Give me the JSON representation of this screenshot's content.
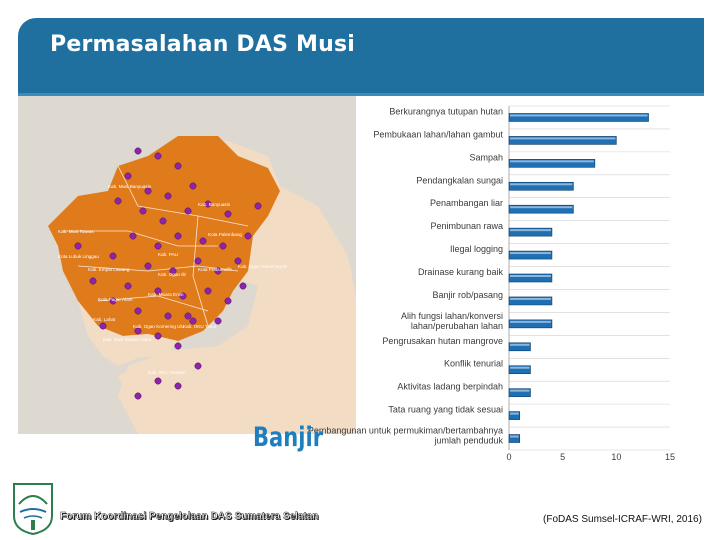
{
  "slide": {
    "title": "Permasalahan DAS Musi",
    "caption": "Banjir",
    "footer": "Forum Koordinasi Pengelolaan DAS Sumatera Selatan",
    "source": "(FoDAS Sumsel-ICRAF-WRI, 2016)",
    "colors": {
      "banner": "#1f6f9f",
      "bar_fill": "#1f6fb5",
      "bar_highlight": "#e6eef7",
      "map_primary": "#e07b1c",
      "map_secondary": "#f2dcc4",
      "markers": "#8e24aa",
      "caption": "#1e7ec0"
    }
  },
  "map": {
    "legend_labels": [
      "Kab. Musi Banyuasin",
      "Kab. Banyuasin",
      "Kab. Musi Rawas",
      "Kota Lubuk Linggau",
      "Kab. Empat Lawang",
      "Kota Pagar Alam",
      "Kab. Lahat",
      "Kab. Muara Enim",
      "Kota Prabumulih",
      "Kab. Ogan Komering Ilir",
      "Kab. Ogan Ilir",
      "Kota Palembang",
      "Kab. Ogan Komering Ulu",
      "Kab. OKU Timur",
      "Kab. OKU Selatan",
      "Kab. Musi Rawas Utara",
      "Kab. PALI"
    ]
  },
  "chart_data": {
    "type": "bar",
    "orientation": "horizontal",
    "categories": [
      "Berkurangnya tutupan hutan",
      "Pembukaan lahan/lahan gambut",
      "Sampah",
      "Pendangkalan sungai",
      "Penambangan liar",
      "Penimbunan rawa",
      "Ilegal logging",
      "Drainase kurang baik",
      "Banjir rob/pasang",
      "Alih fungsi lahan/konversi lahan/perubahan lahan",
      "Pengrusakan hutan mangrove",
      "Konflik tenurial",
      "Aktivitas ladang berpindah",
      "Tata ruang yang tidak sesuai",
      "Pembangunan untuk permukiman/bertambahnya jumlah penduduk"
    ],
    "values": [
      13,
      10,
      8,
      6,
      6,
      4,
      4,
      4,
      4,
      4,
      2,
      2,
      2,
      1,
      1
    ],
    "xlim": [
      0,
      15
    ],
    "xticks": [
      0,
      5,
      10,
      15
    ],
    "title": "",
    "xlabel": "",
    "ylabel": ""
  }
}
